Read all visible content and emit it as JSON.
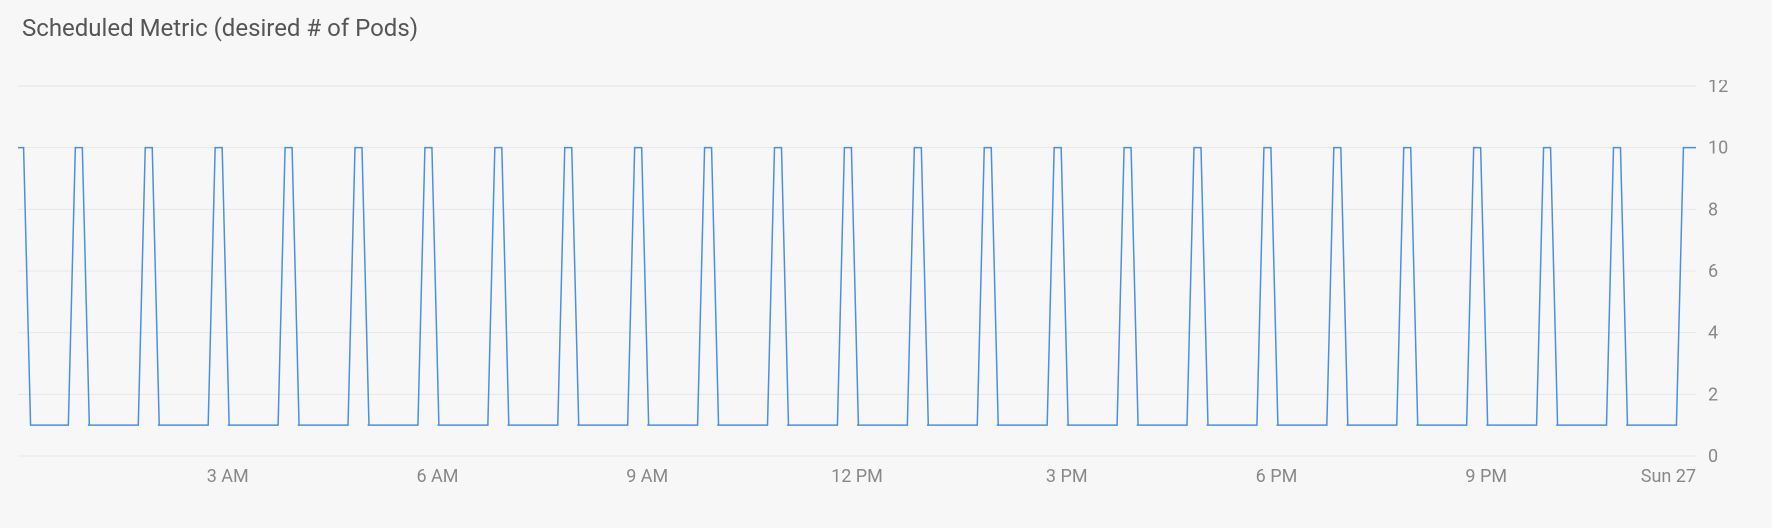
{
  "chart": {
    "type": "line",
    "title": "Scheduled Metric (desired # of Pods)",
    "title_fontsize": 24,
    "title_color": "#555555",
    "line_color": "#4a90e2",
    "line_width": 1.5,
    "background_color": "#f7f7f7",
    "grid_color": "#e7e7e7",
    "tick_font_color": "#888888",
    "tick_font_size": 18,
    "y_axis": {
      "min": 0,
      "max": 12,
      "ticks": [
        0,
        2,
        4,
        6,
        8,
        10,
        12
      ]
    },
    "x_axis": {
      "start_hour": 0,
      "end_hour": 24,
      "tick_hours": [
        3,
        6,
        9,
        12,
        15,
        18,
        21,
        24
      ],
      "tick_labels": [
        "3 AM",
        "6 AM",
        "9 AM",
        "12 PM",
        "3 PM",
        "6 PM",
        "9 PM",
        "Sun 27"
      ]
    },
    "series": {
      "low_value": 1,
      "high_value": 10,
      "period_hours": 1,
      "rise_start_frac": 0.72,
      "high_start_frac": 0.82,
      "high_end_frac": 0.92,
      "fall_end_frac": 1.02,
      "initial_high": true
    }
  }
}
